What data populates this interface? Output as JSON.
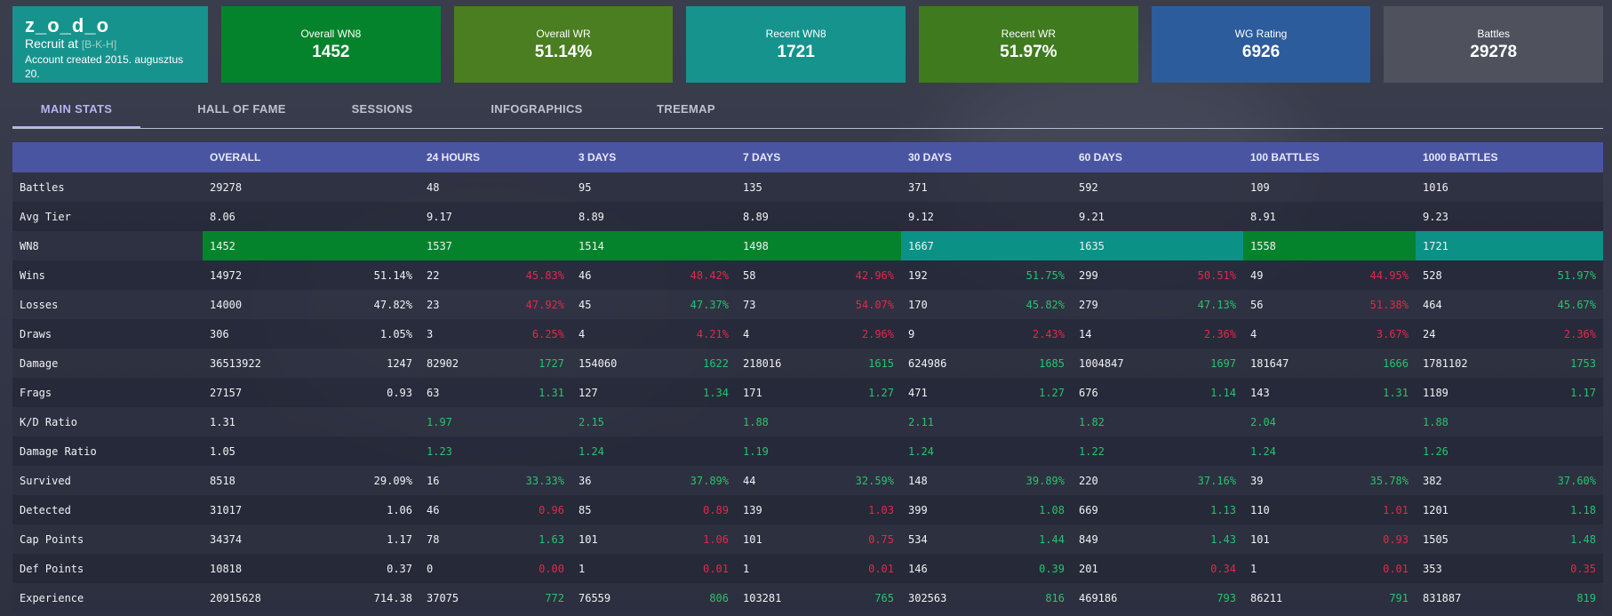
{
  "profile": {
    "name": "z_o_d_o",
    "rank_prefix": "Recruit at",
    "clan": "[B-K-H]",
    "created": "Account created 2015. augusztus 20."
  },
  "cards": [
    {
      "label": "Overall WN8",
      "value": "1452",
      "color": "#05832c"
    },
    {
      "label": "Overall WR",
      "value": "51.14%",
      "color": "#4a7e21"
    },
    {
      "label": "Recent WN8",
      "value": "1721",
      "color": "#16938d"
    },
    {
      "label": "Recent WR",
      "value": "51.97%",
      "color": "#3f7a1f"
    },
    {
      "label": "WG Rating",
      "value": "6926",
      "color": "#2c5c9c"
    },
    {
      "label": "Battles",
      "value": "29278",
      "color": "#4f525d"
    }
  ],
  "tabs": [
    "MAIN STATS",
    "HALL OF FAME",
    "SESSIONS",
    "INFOGRAPHICS",
    "TREEMAP"
  ],
  "table": {
    "headers": [
      "",
      "OVERALL",
      "24 HOURS",
      "3 DAYS",
      "7 DAYS",
      "30 DAYS",
      "60 DAYS",
      "100 BATTLES",
      "1000 BATTLES"
    ],
    "rows": [
      {
        "label": "Battles",
        "cells": [
          [
            "29278",
            ""
          ],
          [
            "48",
            ""
          ],
          [
            "95",
            ""
          ],
          [
            "135",
            ""
          ],
          [
            "371",
            ""
          ],
          [
            "592",
            ""
          ],
          [
            "109",
            ""
          ],
          [
            "1016",
            ""
          ]
        ]
      },
      {
        "label": "Avg Tier",
        "cells": [
          [
            "8.06",
            ""
          ],
          [
            "9.17",
            ""
          ],
          [
            "8.89",
            ""
          ],
          [
            "8.89",
            ""
          ],
          [
            "9.12",
            ""
          ],
          [
            "9.21",
            ""
          ],
          [
            "8.91",
            ""
          ],
          [
            "9.23",
            ""
          ]
        ]
      },
      {
        "label": "WN8",
        "wn8": true,
        "cells": [
          [
            "1452",
            ""
          ],
          [
            "1537",
            ""
          ],
          [
            "1514",
            ""
          ],
          [
            "1498",
            ""
          ],
          [
            "1667",
            ""
          ],
          [
            "1635",
            ""
          ],
          [
            "1558",
            ""
          ],
          [
            "1721",
            ""
          ]
        ],
        "colors": [
          "dark",
          "dark",
          "dark",
          "dark",
          "teal",
          "teal",
          "dark",
          "teal"
        ]
      },
      {
        "label": "Wins",
        "cells": [
          [
            "14972",
            "51.14%"
          ],
          [
            "22",
            "45.83%"
          ],
          [
            "46",
            "48.42%"
          ],
          [
            "58",
            "42.96%"
          ],
          [
            "192",
            "51.75%"
          ],
          [
            "299",
            "50.51%"
          ],
          [
            "49",
            "44.95%"
          ],
          [
            "528",
            "51.97%"
          ]
        ],
        "signs": [
          "w",
          "neg",
          "neg",
          "neg",
          "pos",
          "neg",
          "neg",
          "pos"
        ]
      },
      {
        "label": "Losses",
        "cells": [
          [
            "14000",
            "47.82%"
          ],
          [
            "23",
            "47.92%"
          ],
          [
            "45",
            "47.37%"
          ],
          [
            "73",
            "54.07%"
          ],
          [
            "170",
            "45.82%"
          ],
          [
            "279",
            "47.13%"
          ],
          [
            "56",
            "51.38%"
          ],
          [
            "464",
            "45.67%"
          ]
        ],
        "signs": [
          "w",
          "neg",
          "pos",
          "neg",
          "pos",
          "pos",
          "neg",
          "pos"
        ]
      },
      {
        "label": "Draws",
        "cells": [
          [
            "306",
            "1.05%"
          ],
          [
            "3",
            "6.25%"
          ],
          [
            "4",
            "4.21%"
          ],
          [
            "4",
            "2.96%"
          ],
          [
            "9",
            "2.43%"
          ],
          [
            "14",
            "2.36%"
          ],
          [
            "4",
            "3.67%"
          ],
          [
            "24",
            "2.36%"
          ]
        ],
        "signs": [
          "w",
          "neg",
          "neg",
          "neg",
          "neg",
          "neg",
          "neg",
          "neg"
        ]
      },
      {
        "label": "Damage",
        "cells": [
          [
            "36513922",
            "1247"
          ],
          [
            "82902",
            "1727"
          ],
          [
            "154060",
            "1622"
          ],
          [
            "218016",
            "1615"
          ],
          [
            "624986",
            "1685"
          ],
          [
            "1004847",
            "1697"
          ],
          [
            "181647",
            "1666"
          ],
          [
            "1781102",
            "1753"
          ]
        ],
        "signs": [
          "w",
          "pos",
          "pos",
          "pos",
          "pos",
          "pos",
          "pos",
          "pos"
        ]
      },
      {
        "label": "Frags",
        "cells": [
          [
            "27157",
            "0.93"
          ],
          [
            "63",
            "1.31"
          ],
          [
            "127",
            "1.34"
          ],
          [
            "171",
            "1.27"
          ],
          [
            "471",
            "1.27"
          ],
          [
            "676",
            "1.14"
          ],
          [
            "143",
            "1.31"
          ],
          [
            "1189",
            "1.17"
          ]
        ],
        "signs": [
          "w",
          "pos",
          "pos",
          "pos",
          "pos",
          "pos",
          "pos",
          "pos"
        ]
      },
      {
        "label": "K/D Ratio",
        "cells": [
          [
            "1.31",
            ""
          ],
          [
            "1.97",
            ""
          ],
          [
            "2.15",
            ""
          ],
          [
            "1.88",
            ""
          ],
          [
            "2.11",
            ""
          ],
          [
            "1.82",
            ""
          ],
          [
            "2.04",
            ""
          ],
          [
            "1.88",
            ""
          ]
        ],
        "firstsign": "pos"
      },
      {
        "label": "Damage Ratio",
        "cells": [
          [
            "1.05",
            ""
          ],
          [
            "1.23",
            ""
          ],
          [
            "1.24",
            ""
          ],
          [
            "1.19",
            ""
          ],
          [
            "1.24",
            ""
          ],
          [
            "1.22",
            ""
          ],
          [
            "1.24",
            ""
          ],
          [
            "1.26",
            ""
          ]
        ],
        "firstsign": "pos"
      },
      {
        "label": "Survived",
        "cells": [
          [
            "8518",
            "29.09%"
          ],
          [
            "16",
            "33.33%"
          ],
          [
            "36",
            "37.89%"
          ],
          [
            "44",
            "32.59%"
          ],
          [
            "148",
            "39.89%"
          ],
          [
            "220",
            "37.16%"
          ],
          [
            "39",
            "35.78%"
          ],
          [
            "382",
            "37.60%"
          ]
        ],
        "signs": [
          "w",
          "pos",
          "pos",
          "pos",
          "pos",
          "pos",
          "pos",
          "pos"
        ]
      },
      {
        "label": "Detected",
        "cells": [
          [
            "31017",
            "1.06"
          ],
          [
            "46",
            "0.96"
          ],
          [
            "85",
            "0.89"
          ],
          [
            "139",
            "1.03"
          ],
          [
            "399",
            "1.08"
          ],
          [
            "669",
            "1.13"
          ],
          [
            "110",
            "1.01"
          ],
          [
            "1201",
            "1.18"
          ]
        ],
        "signs": [
          "w",
          "neg",
          "neg",
          "neg",
          "pos",
          "pos",
          "neg",
          "pos"
        ]
      },
      {
        "label": "Cap Points",
        "cells": [
          [
            "34374",
            "1.17"
          ],
          [
            "78",
            "1.63"
          ],
          [
            "101",
            "1.06"
          ],
          [
            "101",
            "0.75"
          ],
          [
            "534",
            "1.44"
          ],
          [
            "849",
            "1.43"
          ],
          [
            "101",
            "0.93"
          ],
          [
            "1505",
            "1.48"
          ]
        ],
        "signs": [
          "w",
          "pos",
          "neg",
          "neg",
          "pos",
          "pos",
          "neg",
          "pos"
        ]
      },
      {
        "label": "Def Points",
        "cells": [
          [
            "10818",
            "0.37"
          ],
          [
            "0",
            "0.00"
          ],
          [
            "1",
            "0.01"
          ],
          [
            "1",
            "0.01"
          ],
          [
            "146",
            "0.39"
          ],
          [
            "201",
            "0.34"
          ],
          [
            "1",
            "0.01"
          ],
          [
            "353",
            "0.35"
          ]
        ],
        "signs": [
          "w",
          "neg",
          "neg",
          "neg",
          "pos",
          "neg",
          "neg",
          "neg"
        ]
      },
      {
        "label": "Experience",
        "cells": [
          [
            "20915628",
            "714.38"
          ],
          [
            "37075",
            "772"
          ],
          [
            "76559",
            "806"
          ],
          [
            "103281",
            "765"
          ],
          [
            "302563",
            "816"
          ],
          [
            "469186",
            "793"
          ],
          [
            "86211",
            "791"
          ],
          [
            "831887",
            "819"
          ]
        ],
        "signs": [
          "w",
          "pos",
          "pos",
          "pos",
          "pos",
          "pos",
          "pos",
          "pos"
        ]
      }
    ]
  }
}
